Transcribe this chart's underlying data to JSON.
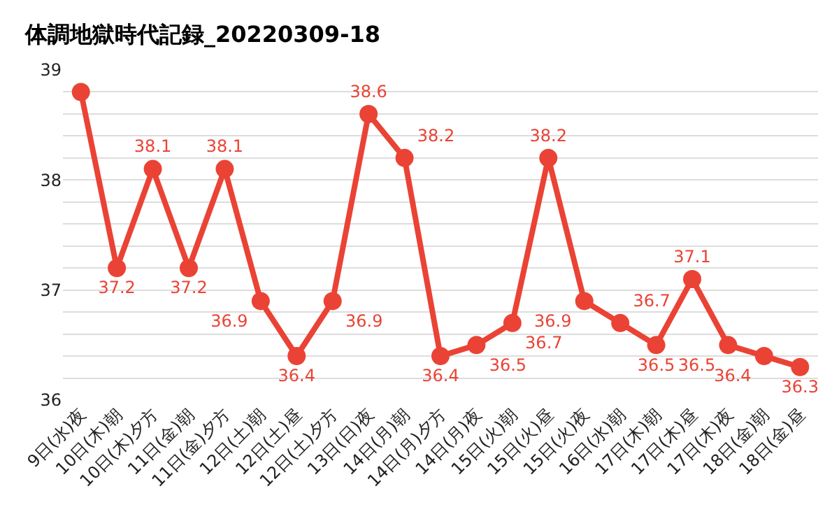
{
  "chart_data": {
    "type": "line",
    "title": "体調地獄時代記録_20220309-18",
    "categories": [
      "9日(水)夜",
      "10日(木)朝",
      "10日(木)夕方",
      "11日(金)朝",
      "11日(金)夕方",
      "12日(土)朝",
      "12日(土)昼",
      "12日(土)夕方",
      "13日(日)夜",
      "14日(月)朝",
      "14日(月)夕方",
      "14日(月)夜",
      "15日(火)朝",
      "15日(火)昼",
      "15日(火)夜",
      "16日(水)朝",
      "17日(木)朝",
      "17日(木)昼",
      "17日(木)夜",
      "18日(金)朝",
      "18日(金)昼"
    ],
    "series": [
      {
        "color": "#ea4335",
        "values": [
          38.8,
          37.2,
          38.1,
          37.2,
          38.1,
          36.9,
          36.4,
          36.9,
          38.6,
          38.2,
          36.4,
          36.5,
          36.7,
          38.2,
          36.9,
          36.7,
          36.5,
          37.1,
          36.5,
          36.4,
          36.3
        ],
        "value_labels": [
          null,
          "37.2",
          "38.1",
          "37.2",
          "38.1",
          "36.9",
          "36.4",
          "36.9",
          "38.6",
          "38.2",
          "36.4",
          "36.5",
          "36.7",
          "38.2",
          "36.9",
          "36.7",
          "36.5",
          "37.1",
          "36.5",
          "36.4",
          "36.3"
        ]
      }
    ],
    "ylim": [
      36,
      39
    ],
    "yticks": [
      36,
      {
        "value": 36.2,
        "label": null
      },
      {
        "value": 36.4,
        "label": null
      },
      {
        "value": 36.6,
        "label": null
      },
      {
        "value": 36.8,
        "label": null
      },
      37,
      {
        "value": 37.2,
        "label": null
      },
      {
        "value": 37.4,
        "label": null
      },
      {
        "value": 37.6,
        "label": null
      },
      {
        "value": 37.8,
        "label": null
      },
      38,
      {
        "value": 38.2,
        "label": null
      },
      {
        "value": 38.4,
        "label": null
      },
      {
        "value": 38.6,
        "label": null
      },
      {
        "value": 38.8,
        "label": null
      },
      39
    ],
    "grid": "y",
    "marker": "circle",
    "line_style": "solid"
  }
}
